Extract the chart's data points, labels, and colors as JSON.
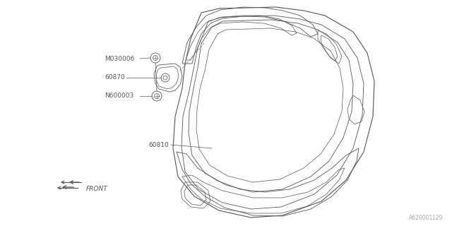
{
  "bg_color": "#ffffff",
  "line_color": "#555555",
  "label_color": "#555555",
  "part_numbers": [
    "M030006",
    "60870",
    "N600003",
    "60810"
  ],
  "catalog_number": "A620001129",
  "fig_width": 6.4,
  "fig_height": 3.2,
  "dpi": 100
}
